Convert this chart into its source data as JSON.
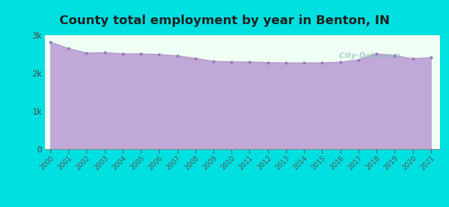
{
  "title": "County total employment by year in Benton, IN",
  "years": [
    2000,
    2001,
    2002,
    2003,
    2004,
    2005,
    2006,
    2007,
    2008,
    2009,
    2010,
    2011,
    2012,
    2013,
    2014,
    2015,
    2016,
    2017,
    2018,
    2019,
    2020,
    2021
  ],
  "values": [
    2820,
    2650,
    2530,
    2540,
    2510,
    2510,
    2490,
    2460,
    2390,
    2310,
    2300,
    2295,
    2280,
    2270,
    2270,
    2270,
    2290,
    2350,
    2510,
    2460,
    2380,
    2410
  ],
  "ylim": [
    0,
    3000
  ],
  "yticks": [
    0,
    1000,
    2000,
    3000
  ],
  "ytick_labels": [
    "0",
    "1k",
    "2k",
    "3k"
  ],
  "line_color": "#b09cc8",
  "fill_color": "#c0a8d8",
  "marker_color": "#9878b8",
  "bg_outer": "#00e0e0",
  "bg_plot": "#f0fff4",
  "title_color": "#222222",
  "watermark": "  City-Data.com",
  "title_fontsize": 13
}
